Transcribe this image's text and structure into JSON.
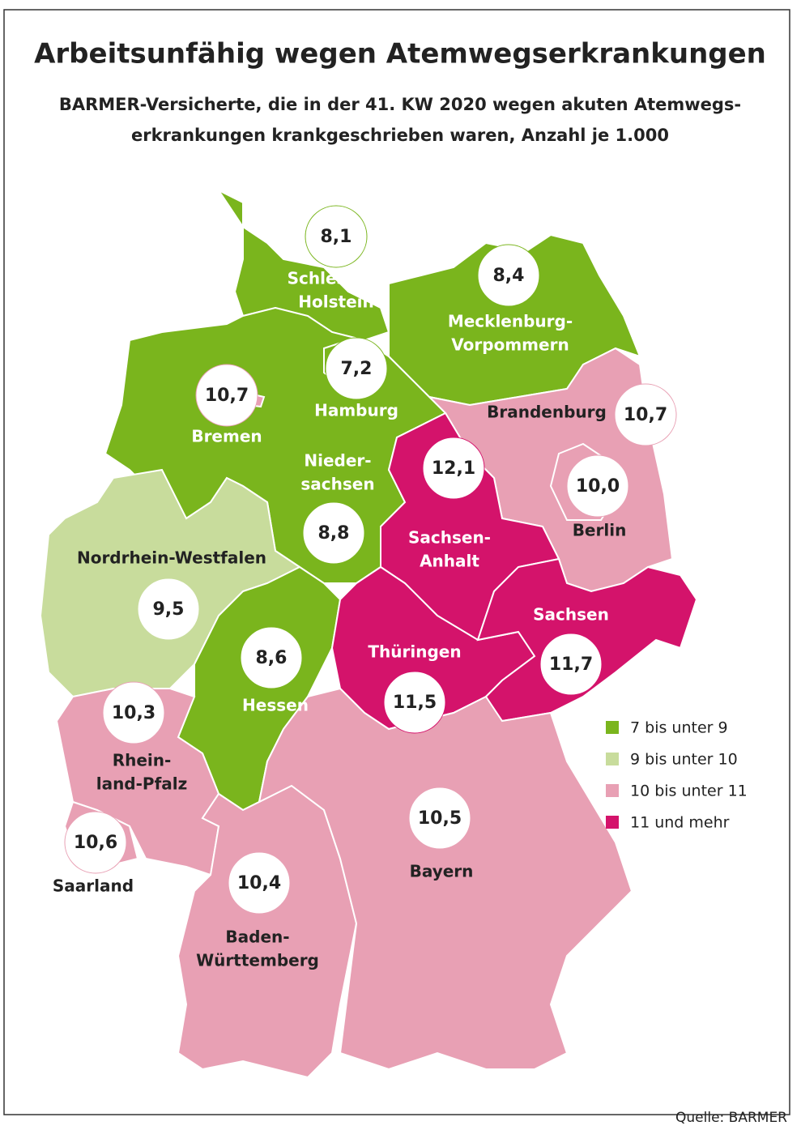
{
  "header": {
    "title": "Arbeitsunfähig wegen Atemwegserkrankungen",
    "subtitle": [
      "BARMER-Versicherte, die in der 41. KW 2020 wegen akuten Atemwegs-",
      "erkrankungen krankgeschrieben waren, Anzahl je 1.000"
    ]
  },
  "regions": [
    {
      "name": [
        "Schleswig-",
        "Holstein"
      ],
      "value": "8,1",
      "color": "#7ab51d"
    },
    {
      "name": [
        "Mecklenburg-",
        "Vorpommern"
      ],
      "value": "8,4",
      "color": "#7ab51d"
    },
    {
      "name": [
        "Brandenburg"
      ],
      "value": "10,7",
      "color": "#e8a0b4"
    },
    {
      "name": [
        "Berlin"
      ],
      "value": "10,0",
      "color": "#e8a0b4"
    },
    {
      "name": [
        "Nieder-",
        "sachsen"
      ],
      "value": "8,8",
      "color": "#7ab51d"
    },
    {
      "name": [
        "Bremen"
      ],
      "value": "10,7",
      "color": "#e8a0b4"
    },
    {
      "name": [
        "Hamburg"
      ],
      "value": "7,2",
      "color": "#7ab51d"
    },
    {
      "name": [
        "Nordrhein-Westfalen"
      ],
      "value": "9,5",
      "color": "#c8dc9c"
    },
    {
      "name": [
        "Sachsen-",
        "Anhalt"
      ],
      "value": "12,1",
      "color": "#d4136b"
    },
    {
      "name": [
        "Hessen"
      ],
      "value": "8,6",
      "color": "#7ab51d"
    },
    {
      "name": [
        "Thüringen"
      ],
      "value": "11,5",
      "color": "#d4136b"
    },
    {
      "name": [
        "Sachsen"
      ],
      "value": "11,7",
      "color": "#d4136b"
    },
    {
      "name": [
        "Rhein-",
        "land-Pfalz"
      ],
      "value": "10,3",
      "color": "#e8a0b4"
    },
    {
      "name": [
        "Saarland"
      ],
      "value": "10,6",
      "color": "#e8a0b4"
    },
    {
      "name": [
        "Baden-",
        "Württemberg"
      ],
      "value": "10,4",
      "color": "#e8a0b4"
    },
    {
      "name": [
        "Bayern"
      ],
      "value": "10,5",
      "color": "#e8a0b4"
    }
  ],
  "legend": [
    {
      "label": "7 bis unter 9",
      "color": "#7ab51d"
    },
    {
      "label": "9 bis unter 10",
      "color": "#c8dc9c"
    },
    {
      "label": "10 bis unter 11",
      "color": "#e8a0b4"
    },
    {
      "label": "11 und mehr",
      "color": "#d4136b"
    }
  ],
  "source": "Quelle: BARMER"
}
